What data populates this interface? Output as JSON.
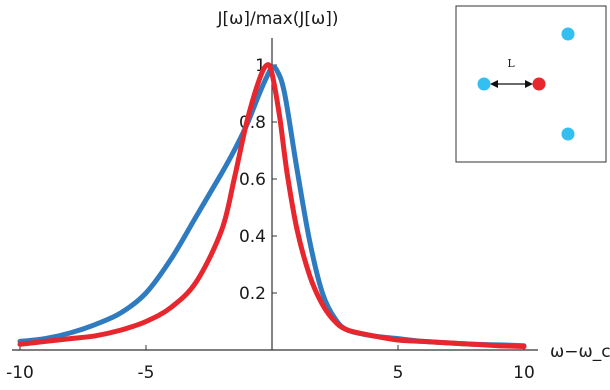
{
  "chart_data": {
    "type": "line",
    "title": "",
    "xlabel": "ω−ω_ca",
    "ylabel": "J[ω]/max(J[ω])",
    "xlim": [
      -10.4,
      10.4
    ],
    "ylim": [
      0,
      1.05
    ],
    "x_ticks": [
      -10,
      -5,
      5,
      10
    ],
    "y_ticks": [
      0.2,
      0.4,
      0.6,
      0.8,
      1
    ],
    "grid": false,
    "legend": "none",
    "series": [
      {
        "color": "#2f7bbf",
        "x": [
          -10,
          -9,
          -8,
          -7,
          -6,
          -5,
          -4,
          -3,
          -2,
          -1.5,
          -1,
          -0.5,
          -0.2,
          0,
          0.2,
          0.5,
          1,
          1.5,
          2,
          2.5,
          3,
          4,
          5,
          6,
          7,
          8,
          9,
          10
        ],
        "y": [
          0.03,
          0.04,
          0.06,
          0.09,
          0.13,
          0.2,
          0.32,
          0.47,
          0.62,
          0.7,
          0.79,
          0.9,
          0.96,
          0.99,
          0.98,
          0.9,
          0.63,
          0.38,
          0.2,
          0.11,
          0.07,
          0.05,
          0.04,
          0.03,
          0.025,
          0.02,
          0.018,
          0.015
        ]
      },
      {
        "color": "#e8262d",
        "x": [
          -10,
          -9,
          -8,
          -7,
          -6,
          -5,
          -4,
          -3,
          -2,
          -1.5,
          -1,
          -0.5,
          -0.2,
          0,
          0.3,
          0.6,
          1,
          1.5,
          2,
          2.5,
          3,
          4,
          5,
          6,
          7,
          8,
          9,
          10
        ],
        "y": [
          0.02,
          0.03,
          0.04,
          0.05,
          0.07,
          0.1,
          0.15,
          0.24,
          0.42,
          0.6,
          0.8,
          0.95,
          1.0,
          0.97,
          0.82,
          0.62,
          0.42,
          0.26,
          0.16,
          0.1,
          0.07,
          0.05,
          0.035,
          0.03,
          0.025,
          0.02,
          0.015,
          0.012
        ]
      }
    ],
    "inset": {
      "label": "L",
      "points": [
        {
          "color": "#33bfef"
        },
        {
          "color": "#e8262d"
        },
        {
          "color": "#33bfef"
        },
        {
          "color": "#33bfef"
        }
      ]
    }
  },
  "y_tick_labels": [
    "0.2",
    "0.4",
    "0.6",
    "0.8",
    "1"
  ],
  "x_tick_labels": [
    "-10",
    "-5",
    "5",
    "10"
  ]
}
